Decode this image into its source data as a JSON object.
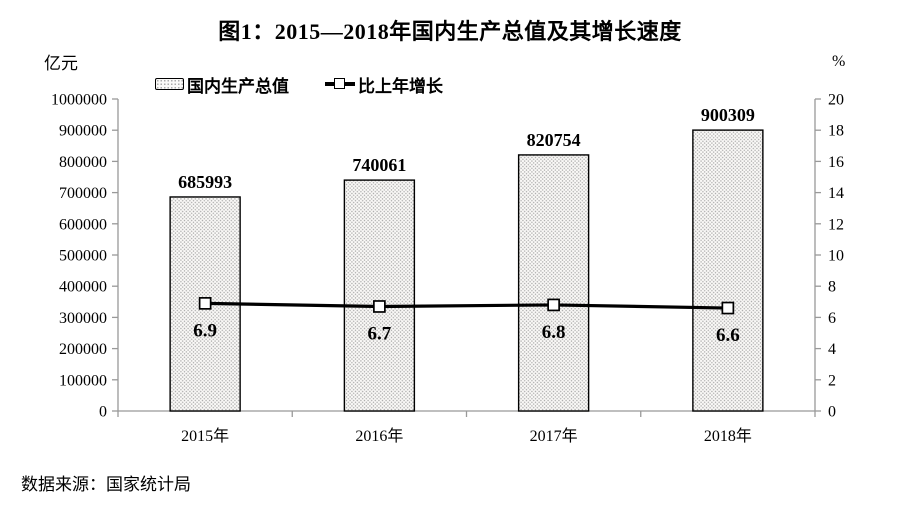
{
  "page": {
    "source": "数据来源：国家统计局"
  },
  "chart_data": {
    "type": "bar",
    "subtype": "bar+line combo, dual axis",
    "title": "图1：2015—2018年国内生产总值及其增长速度",
    "categories": [
      "2015年",
      "2016年",
      "2017年",
      "2018年"
    ],
    "series": [
      {
        "name": "国内生产总值",
        "type": "bar",
        "axis": "left",
        "unit": "亿元",
        "values": [
          685993,
          740061,
          820754,
          900309
        ]
      },
      {
        "name": "比上年增长",
        "type": "line",
        "axis": "right",
        "unit": "%",
        "values": [
          6.9,
          6.7,
          6.8,
          6.6
        ]
      }
    ],
    "left_axis": {
      "label": "亿元",
      "min": 0,
      "max": 1000000,
      "step": 100000
    },
    "right_axis": {
      "label": "%",
      "min": 0,
      "max": 20,
      "step": 2
    },
    "legend_position": "top-left",
    "grid": false,
    "colors": {
      "background": "#ffffff",
      "text": "#000000",
      "axis": "#999999",
      "bar_fill": "#fbfaf8",
      "bar_dots": "#ababab",
      "bar_border": "#000000",
      "line": "#000000",
      "marker_fill": "#ffffff",
      "marker_border": "#000000"
    }
  }
}
